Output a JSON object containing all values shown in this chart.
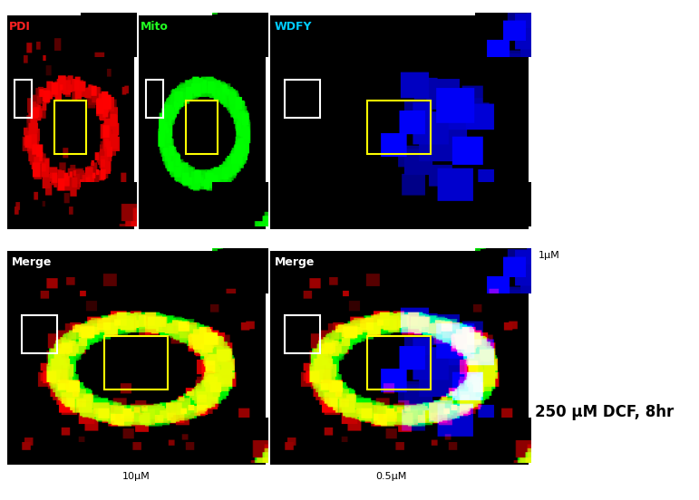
{
  "fig_width": 7.71,
  "fig_height": 5.52,
  "dpi": 100,
  "bg_color": "#ffffff",
  "panel_bg": "#000000",
  "labels": {
    "PDI": {
      "text": "PDI",
      "color": "#ff2222"
    },
    "Mito": {
      "text": "Mito",
      "color": "#22ff22"
    },
    "WDFY": {
      "text": "WDFY",
      "color": "#00ccff"
    },
    "Merge1": {
      "text": "Merge",
      "color": "#ffffff"
    },
    "Merge2": {
      "text": "Merge",
      "color": "#ffffff"
    }
  },
  "scale_labels": {
    "scale1": {
      "text": "1μM"
    },
    "scale2": {
      "text": "10μM"
    },
    "scale3": {
      "text": "0.5μM"
    },
    "dcf": {
      "text": "250 μM DCF, 8hr"
    }
  }
}
